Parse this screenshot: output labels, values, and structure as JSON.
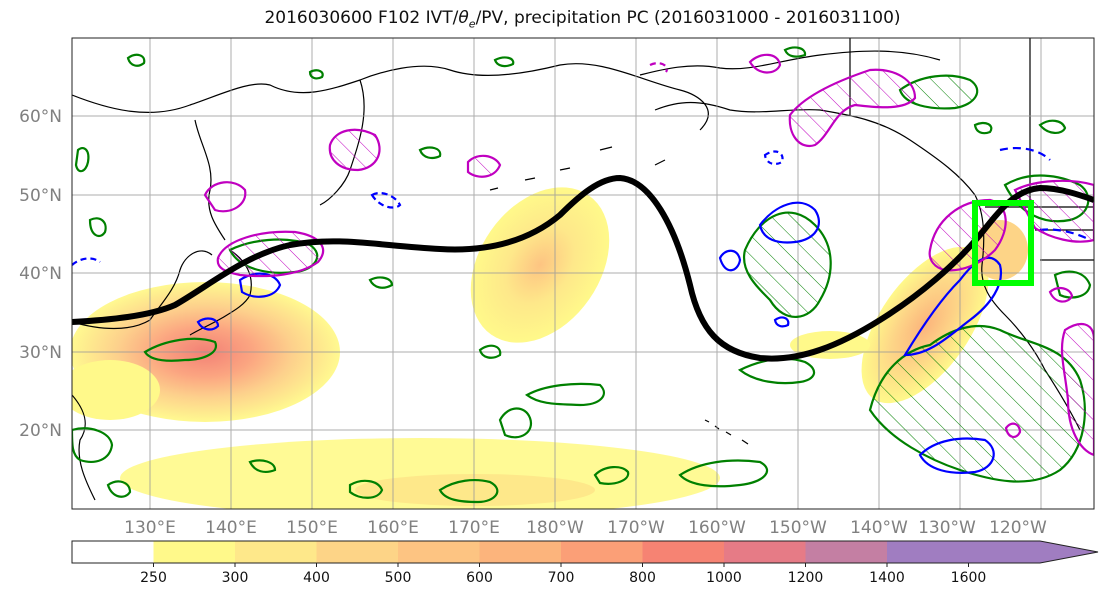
{
  "title": {
    "prefix": "2016030600 F102 IVT/",
    "theta": "θ",
    "theta_sub": "e",
    "suffix": "/PV, precipitation PC (2016031000 - 2016031100)"
  },
  "map": {
    "lat_labels": [
      "60°N",
      "50°N",
      "40°N",
      "30°N",
      "20°N"
    ],
    "lon_labels": [
      "130°E",
      "140°E",
      "150°E",
      "160°E",
      "170°E",
      "180°W",
      "170°W",
      "160°W",
      "150°W",
      "140°W",
      "130°W",
      "120°W"
    ],
    "box_color": "#00ff00",
    "jet_color": "#000000",
    "positive_contour_color": "#008000",
    "negative_contour_color": "#0000ff",
    "pv_contour_color": "#c000c0"
  },
  "colorbar": {
    "levels": [
      "250",
      "300",
      "400",
      "500",
      "600",
      "700",
      "800",
      "1000",
      "1200",
      "1400",
      "1600"
    ],
    "colors": [
      "#ffffff",
      "#fff98a",
      "#fee88a",
      "#fdd487",
      "#fdc482",
      "#fcb47c",
      "#fb9f77",
      "#f68373",
      "#e67b86",
      "#c47fa3",
      "#a07dc1",
      "#a07dc1"
    ]
  }
}
